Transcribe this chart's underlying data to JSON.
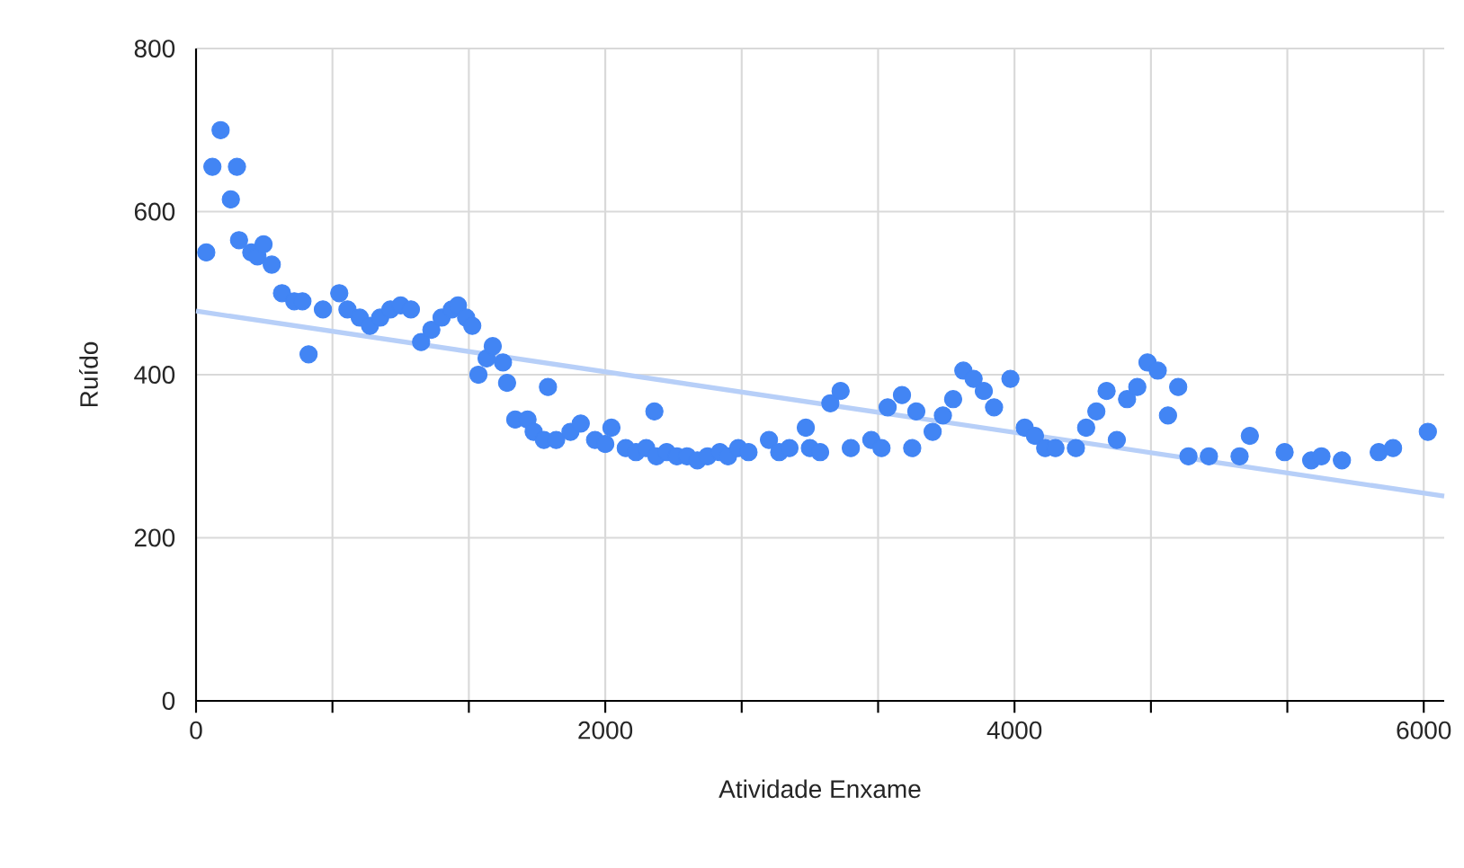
{
  "chart_data": {
    "type": "scatter",
    "xlabel": "Atividade Enxame",
    "ylabel": "Ruído",
    "xlim": [
      0,
      6100
    ],
    "ylim": [
      0,
      800
    ],
    "xticks": [
      0,
      {
        "value": 666.67,
        "label": null
      },
      {
        "value": 1333.33,
        "label": null
      },
      2000,
      {
        "value": 2666.67,
        "label": null
      },
      {
        "value": 3333.33,
        "label": null
      },
      4000,
      {
        "value": 4666.67,
        "label": null
      },
      {
        "value": 5333.33,
        "label": null
      },
      6000
    ],
    "yticks": [
      0,
      200,
      400,
      600,
      800
    ],
    "grid": true,
    "series": [
      {
        "color": "#4285f4",
        "marker": "circle",
        "x": [
          50,
          80,
          120,
          170,
          200,
          210,
          270,
          300,
          330,
          370,
          420,
          480,
          520,
          550,
          620,
          700,
          740,
          800,
          850,
          900,
          950,
          1000,
          1050,
          1100,
          1150,
          1200,
          1250,
          1280,
          1320,
          1350,
          1380,
          1420,
          1450,
          1500,
          1520,
          1560,
          1620,
          1650,
          1700,
          1720,
          1760,
          1830,
          1880,
          1950,
          2000,
          2030,
          2100,
          2150,
          2200,
          2240,
          2250,
          2300,
          2350,
          2400,
          2450,
          2500,
          2560,
          2600,
          2650,
          2700,
          2800,
          2850,
          2900,
          2980,
          3000,
          3050,
          3100,
          3150,
          3200,
          3300,
          3350,
          3380,
          3450,
          3500,
          3520,
          3600,
          3650,
          3700,
          3750,
          3800,
          3850,
          3900,
          3980,
          4050,
          4100,
          4150,
          4200,
          4300,
          4350,
          4400,
          4450,
          4500,
          4550,
          4600,
          4650,
          4700,
          4750,
          4800,
          4850,
          4950,
          5100,
          5150,
          5320,
          5450,
          5500,
          5600,
          5780,
          5850,
          6020
        ],
        "values": [
          550,
          655,
          700,
          615,
          655,
          565,
          550,
          545,
          560,
          535,
          500,
          490,
          490,
          425,
          480,
          500,
          480,
          470,
          460,
          470,
          480,
          485,
          480,
          440,
          455,
          470,
          480,
          485,
          470,
          460,
          400,
          420,
          435,
          415,
          390,
          345,
          345,
          330,
          320,
          385,
          320,
          330,
          340,
          320,
          315,
          335,
          310,
          305,
          310,
          355,
          300,
          305,
          300,
          300,
          295,
          300,
          305,
          300,
          310,
          305,
          320,
          305,
          310,
          335,
          310,
          305,
          365,
          380,
          310,
          320,
          310,
          360,
          375,
          310,
          355,
          330,
          350,
          370,
          405,
          395,
          380,
          360,
          395,
          335,
          325,
          310,
          310,
          310,
          335,
          355,
          380,
          320,
          370,
          385,
          415,
          405,
          350,
          385,
          300,
          300,
          300,
          325,
          305,
          295,
          300,
          295,
          305,
          310,
          330
        ]
      },
      {
        "type": "line",
        "color": "#b7cff8",
        "marker": "none",
        "x": [
          0,
          6100
        ],
        "values": [
          478,
          251
        ]
      }
    ]
  }
}
